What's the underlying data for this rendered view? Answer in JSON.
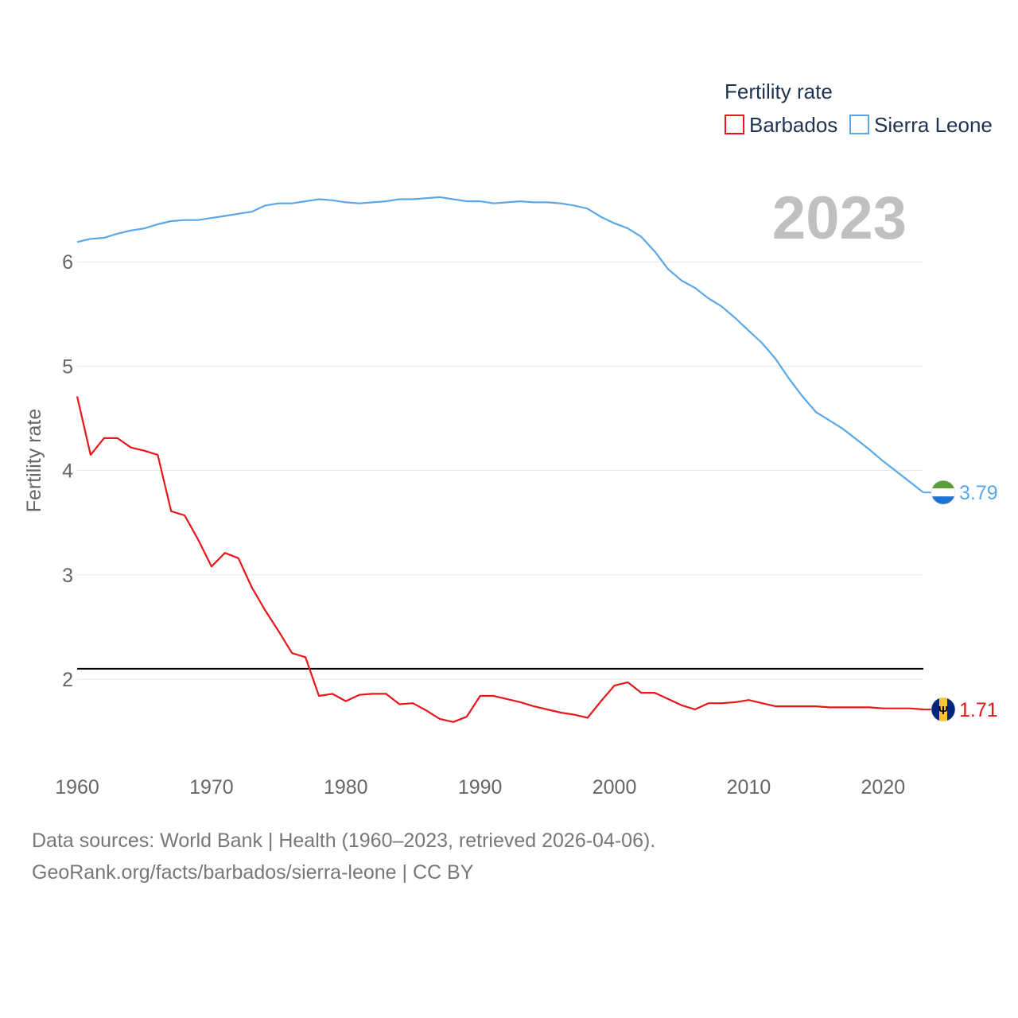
{
  "chart_data": {
    "type": "line",
    "ylabel": "Fertility rate",
    "xlabel": "",
    "xlim": [
      1960,
      2023
    ],
    "ylim": [
      1.2,
      6.9
    ],
    "yticks": [
      2,
      3,
      4,
      5,
      6
    ],
    "xticks": [
      1960,
      1970,
      1980,
      1990,
      2000,
      2010,
      2020
    ],
    "grid": true,
    "legend": {
      "title": "Fertility rate",
      "position": "top-right"
    },
    "current_year_label": "2023",
    "reference_line": {
      "y": 2.1
    },
    "x": [
      1960,
      1961,
      1962,
      1963,
      1964,
      1965,
      1966,
      1967,
      1968,
      1969,
      1970,
      1971,
      1972,
      1973,
      1974,
      1975,
      1976,
      1977,
      1978,
      1979,
      1980,
      1981,
      1982,
      1983,
      1984,
      1985,
      1986,
      1987,
      1988,
      1989,
      1990,
      1991,
      1992,
      1993,
      1994,
      1995,
      1996,
      1997,
      1998,
      1999,
      2000,
      2001,
      2002,
      2003,
      2004,
      2005,
      2006,
      2007,
      2008,
      2009,
      2010,
      2011,
      2012,
      2013,
      2014,
      2015,
      2016,
      2017,
      2018,
      2019,
      2020,
      2021,
      2022,
      2023
    ],
    "series": [
      {
        "name": "Barbados",
        "color": "#e8161b",
        "end_value_label": "1.71",
        "flag": "barbados-flag",
        "values": [
          4.71,
          4.15,
          4.31,
          4.31,
          4.22,
          4.19,
          4.15,
          3.61,
          3.57,
          3.34,
          3.08,
          3.21,
          3.16,
          2.88,
          2.66,
          2.46,
          2.25,
          2.21,
          1.84,
          1.86,
          1.79,
          1.85,
          1.86,
          1.86,
          1.76,
          1.77,
          1.7,
          1.62,
          1.59,
          1.64,
          1.84,
          1.84,
          1.81,
          1.78,
          1.74,
          1.71,
          1.68,
          1.66,
          1.63,
          1.79,
          1.94,
          1.97,
          1.87,
          1.87,
          1.81,
          1.75,
          1.71,
          1.77,
          1.77,
          1.78,
          1.8,
          1.77,
          1.74,
          1.74,
          1.74,
          1.74,
          1.73,
          1.73,
          1.73,
          1.73,
          1.72,
          1.72,
          1.72,
          1.71
        ]
      },
      {
        "name": "Sierra Leone",
        "color": "#5ba7e6",
        "end_value_label": "3.79",
        "flag": "sierra-leone-flag",
        "values": [
          6.19,
          6.22,
          6.23,
          6.27,
          6.3,
          6.32,
          6.36,
          6.39,
          6.4,
          6.4,
          6.42,
          6.44,
          6.46,
          6.48,
          6.54,
          6.56,
          6.56,
          6.58,
          6.6,
          6.59,
          6.57,
          6.56,
          6.57,
          6.58,
          6.6,
          6.6,
          6.61,
          6.62,
          6.6,
          6.58,
          6.58,
          6.56,
          6.57,
          6.58,
          6.57,
          6.57,
          6.56,
          6.54,
          6.51,
          6.43,
          6.37,
          6.32,
          6.24,
          6.1,
          5.93,
          5.82,
          5.75,
          5.65,
          5.57,
          5.46,
          5.34,
          5.22,
          5.07,
          4.88,
          4.71,
          4.56,
          4.48,
          4.4,
          4.3,
          4.2,
          4.09,
          3.99,
          3.89,
          3.79
        ]
      }
    ]
  },
  "footer": {
    "line1": "Data sources: World Bank | Health (1960–2023, retrieved 2026-04-06).",
    "line2": "GeoRank.org/facts/barbados/sierra-leone | CC BY"
  }
}
